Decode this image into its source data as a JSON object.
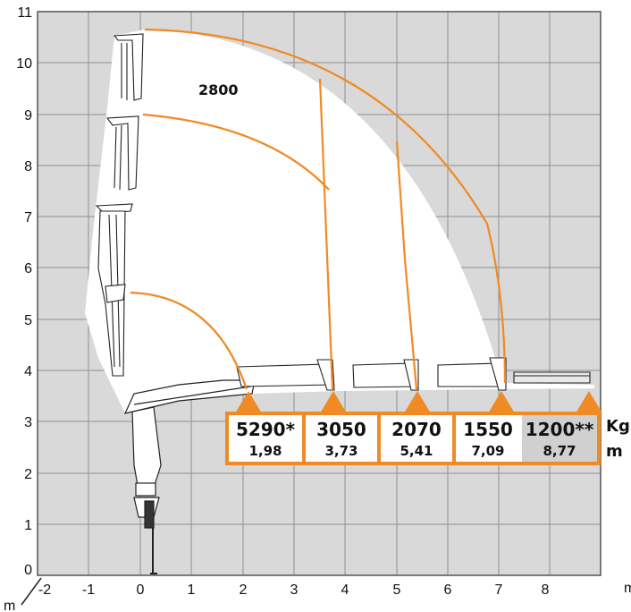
{
  "diagram": {
    "x_ticks": [
      "-2",
      "-1",
      "0",
      "1",
      "2",
      "3",
      "4",
      "5",
      "6",
      "7",
      "8"
    ],
    "y_ticks": [
      "0",
      "1",
      "2",
      "3",
      "4",
      "5",
      "6",
      "7",
      "8",
      "9",
      "10",
      "11"
    ],
    "x_unit": "m",
    "y_unit": "m",
    "top_capacity": "2800",
    "load_unit": "Kg",
    "radius_unit": "m",
    "colors": {
      "envelope": "#f08a24",
      "grid_fill": "#d9d9d9",
      "grid_line": "#8f8f8f",
      "highlight_cell": "#d0d0d0"
    },
    "load_table": [
      {
        "load": "5290*",
        "radius": "1,98",
        "x": 1.98
      },
      {
        "load": "3050",
        "radius": "3,73",
        "x": 3.73
      },
      {
        "load": "2070",
        "radius": "5,41",
        "x": 5.41
      },
      {
        "load": "1550",
        "radius": "7,09",
        "x": 7.09
      },
      {
        "load": "1200**",
        "radius": "8,77",
        "x": 8.77
      }
    ]
  }
}
